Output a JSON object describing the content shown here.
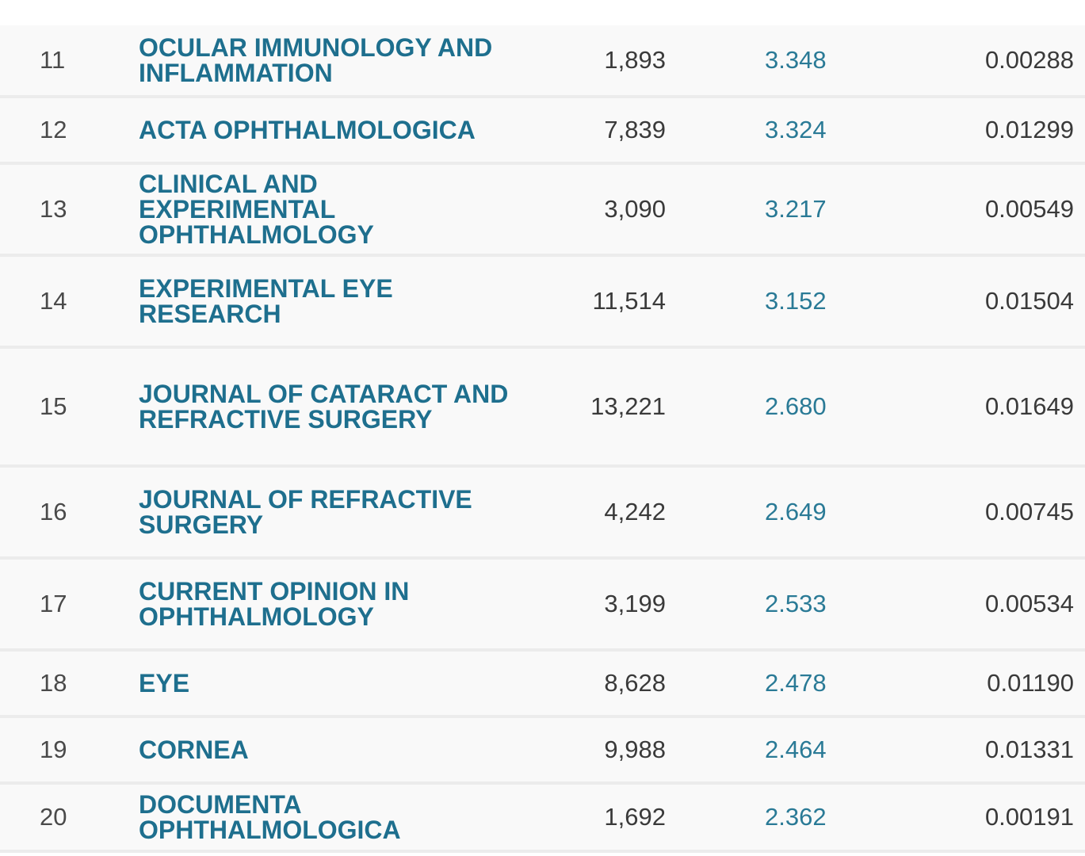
{
  "rows": [
    {
      "rank": "11",
      "title": "OCULAR IMMUNOLOGY AND INFLAMMATION",
      "citations": "1,893",
      "impact_factor": "3.348",
      "eigenfactor": "0.00288"
    },
    {
      "rank": "12",
      "title": "ACTA OPHTHALMOLOGICA",
      "citations": "7,839",
      "impact_factor": "3.324",
      "eigenfactor": "0.01299"
    },
    {
      "rank": "13",
      "title": "CLINICAL AND EXPERIMENTAL OPHTHALMOLOGY",
      "citations": "3,090",
      "impact_factor": "3.217",
      "eigenfactor": "0.00549"
    },
    {
      "rank": "14",
      "title": "EXPERIMENTAL EYE RESEARCH",
      "citations": "11,514",
      "impact_factor": "3.152",
      "eigenfactor": "0.01504"
    },
    {
      "rank": "15",
      "title": "JOURNAL OF CATARACT AND REFRACTIVE SURGERY",
      "citations": "13,221",
      "impact_factor": "2.680",
      "eigenfactor": "0.01649"
    },
    {
      "rank": "16",
      "title": "JOURNAL OF REFRACTIVE SURGERY",
      "citations": "4,242",
      "impact_factor": "2.649",
      "eigenfactor": "0.00745"
    },
    {
      "rank": "17",
      "title": "CURRENT OPINION IN OPHTHALMOLOGY",
      "citations": "3,199",
      "impact_factor": "2.533",
      "eigenfactor": "0.00534"
    },
    {
      "rank": "18",
      "title": "EYE",
      "citations": "8,628",
      "impact_factor": "2.478",
      "eigenfactor": "0.01190"
    },
    {
      "rank": "19",
      "title": "CORNEA",
      "citations": "9,988",
      "impact_factor": "2.464",
      "eigenfactor": "0.01331"
    },
    {
      "rank": "20",
      "title": "DOCUMENTA OPHTHALMOLOGICA",
      "citations": "1,692",
      "impact_factor": "2.362",
      "eigenfactor": "0.00191"
    }
  ],
  "colors": {
    "title_link": "#1e6f8e",
    "impact_factor": "#2a7a96",
    "text": "#3a3a3a",
    "row_bg": "#f9f9f9",
    "row_border": "#ececec"
  }
}
